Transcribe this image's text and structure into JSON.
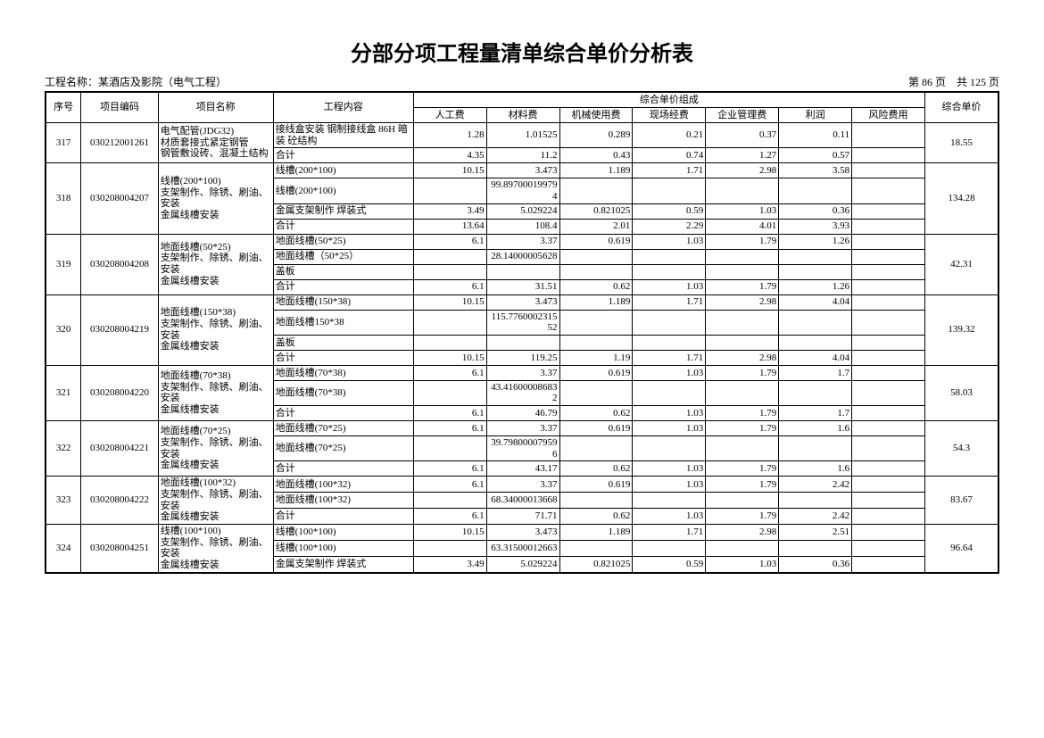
{
  "title": "分部分项工程量清单综合单价分析表",
  "project_label": "工程名称：",
  "project_name": "某酒店及影院（电气工程）",
  "page_info_left": "第 86 页",
  "page_info_right": "共 125 页",
  "headers": {
    "seq": "序号",
    "code": "项目编码",
    "name": "项目名称",
    "content": "工程内容",
    "group": "综合单价组成",
    "labor": "人工费",
    "material": "材料费",
    "machine": "机械使用费",
    "site": "现场经费",
    "mgmt": "企业管理费",
    "profit": "利润",
    "risk": "风险费用",
    "total": "综合单价"
  },
  "rows": [
    {
      "seq": "317",
      "code": "030212001261",
      "name": "电气配管(JDG32)\n材质套接式紧定钢管\n钢管敷设砖、混凝土结构",
      "total": "18.55",
      "lines": [
        {
          "content": "接线盒安装 钢制接线盒 86H 暗装 砼结构",
          "labor": "1.28",
          "material": "1.01525",
          "machine": "0.289",
          "site": "0.21",
          "mgmt": "0.37",
          "profit": "0.11",
          "risk": ""
        },
        {
          "content": "合计",
          "labor": "4.35",
          "material": "11.2",
          "machine": "0.43",
          "site": "0.74",
          "mgmt": "1.27",
          "profit": "0.57",
          "risk": ""
        }
      ]
    },
    {
      "seq": "318",
      "code": "030208004207",
      "name": "线槽(200*100)\n支架制作、除锈、刷油、安装\n金属线槽安装",
      "total": "134.28",
      "lines": [
        {
          "content": "线槽(200*100)",
          "labor": "10.15",
          "material": "3.473",
          "machine": "1.189",
          "site": "1.71",
          "mgmt": "2.98",
          "profit": "3.58",
          "risk": ""
        },
        {
          "content": "线槽(200*100)",
          "labor": "",
          "material": "99.897000199794",
          "machine": "",
          "site": "",
          "mgmt": "",
          "profit": "",
          "risk": ""
        },
        {
          "content": "金属支架制作 焊装式",
          "labor": "3.49",
          "material": "5.029224",
          "machine": "0.821025",
          "site": "0.59",
          "mgmt": "1.03",
          "profit": "0.36",
          "risk": ""
        },
        {
          "content": "合计",
          "labor": "13.64",
          "material": "108.4",
          "machine": "2.01",
          "site": "2.29",
          "mgmt": "4.01",
          "profit": "3.93",
          "risk": ""
        }
      ]
    },
    {
      "seq": "319",
      "code": "030208004208",
      "name": "地面线槽(50*25)\n支架制作、除锈、刷油、安装\n金属线槽安装",
      "total": "42.31",
      "lines": [
        {
          "content": "地面线槽(50*25)",
          "labor": "6.1",
          "material": "3.37",
          "machine": "0.619",
          "site": "1.03",
          "mgmt": "1.79",
          "profit": "1.26",
          "risk": ""
        },
        {
          "content": "地面线槽（50*25）",
          "labor": "",
          "material": "28.14000005628",
          "machine": "",
          "site": "",
          "mgmt": "",
          "profit": "",
          "risk": ""
        },
        {
          "content": "盖板",
          "labor": "",
          "material": "",
          "machine": "",
          "site": "",
          "mgmt": "",
          "profit": "",
          "risk": ""
        },
        {
          "content": "合计",
          "labor": "6.1",
          "material": "31.51",
          "machine": "0.62",
          "site": "1.03",
          "mgmt": "1.79",
          "profit": "1.26",
          "risk": ""
        }
      ]
    },
    {
      "seq": "320",
      "code": "030208004219",
      "name": "地面线槽(150*38)\n支架制作、除锈、刷油、安装\n金属线槽安装",
      "total": "139.32",
      "lines": [
        {
          "content": "地面线槽(150*38)",
          "labor": "10.15",
          "material": "3.473",
          "machine": "1.189",
          "site": "1.71",
          "mgmt": "2.98",
          "profit": "4.04",
          "risk": ""
        },
        {
          "content": "地面线槽150*38",
          "labor": "",
          "material": "115.776000231552",
          "machine": "",
          "site": "",
          "mgmt": "",
          "profit": "",
          "risk": ""
        },
        {
          "content": "盖板",
          "labor": "",
          "material": "",
          "machine": "",
          "site": "",
          "mgmt": "",
          "profit": "",
          "risk": ""
        },
        {
          "content": "合计",
          "labor": "10.15",
          "material": "119.25",
          "machine": "1.19",
          "site": "1.71",
          "mgmt": "2.98",
          "profit": "4.04",
          "risk": ""
        }
      ]
    },
    {
      "seq": "321",
      "code": "030208004220",
      "name": "地面线槽(70*38)\n支架制作、除锈、刷油、安装\n金属线槽安装",
      "total": "58.03",
      "lines": [
        {
          "content": "地面线槽(70*38)",
          "labor": "6.1",
          "material": "3.37",
          "machine": "0.619",
          "site": "1.03",
          "mgmt": "1.79",
          "profit": "1.7",
          "risk": ""
        },
        {
          "content": "地面线槽(70*38)",
          "labor": "",
          "material": "43.416000086832",
          "machine": "",
          "site": "",
          "mgmt": "",
          "profit": "",
          "risk": ""
        },
        {
          "content": "合计",
          "labor": "6.1",
          "material": "46.79",
          "machine": "0.62",
          "site": "1.03",
          "mgmt": "1.79",
          "profit": "1.7",
          "risk": ""
        }
      ]
    },
    {
      "seq": "322",
      "code": "030208004221",
      "name": "地面线槽(70*25)\n支架制作、除锈、刷油、安装\n金属线槽安装",
      "total": "54.3",
      "lines": [
        {
          "content": "地面线槽(70*25)",
          "labor": "6.1",
          "material": "3.37",
          "machine": "0.619",
          "site": "1.03",
          "mgmt": "1.79",
          "profit": "1.6",
          "risk": ""
        },
        {
          "content": "地面线槽(70*25)",
          "labor": "",
          "material": "39.798000079596",
          "machine": "",
          "site": "",
          "mgmt": "",
          "profit": "",
          "risk": ""
        },
        {
          "content": "合计",
          "labor": "6.1",
          "material": "43.17",
          "machine": "0.62",
          "site": "1.03",
          "mgmt": "1.79",
          "profit": "1.6",
          "risk": ""
        }
      ]
    },
    {
      "seq": "323",
      "code": "030208004222",
      "name": "地面线槽(100*32)\n支架制作、除锈、刷油、安装\n金属线槽安装",
      "total": "83.67",
      "lines": [
        {
          "content": "地面线槽(100*32)",
          "labor": "6.1",
          "material": "3.37",
          "machine": "0.619",
          "site": "1.03",
          "mgmt": "1.79",
          "profit": "2.42",
          "risk": ""
        },
        {
          "content": "地面线槽(100*32)",
          "labor": "",
          "material": "68.34000013668",
          "machine": "",
          "site": "",
          "mgmt": "",
          "profit": "",
          "risk": ""
        },
        {
          "content": "合计",
          "labor": "6.1",
          "material": "71.71",
          "machine": "0.62",
          "site": "1.03",
          "mgmt": "1.79",
          "profit": "2.42",
          "risk": ""
        }
      ]
    },
    {
      "seq": "324",
      "code": "030208004251",
      "name": "线槽(100*100)\n支架制作、除锈、刷油、安装\n金属线槽安装",
      "total": "96.64",
      "lines": [
        {
          "content": "线槽(100*100)",
          "labor": "10.15",
          "material": "3.473",
          "machine": "1.189",
          "site": "1.71",
          "mgmt": "2.98",
          "profit": "2.51",
          "risk": ""
        },
        {
          "content": "线槽(100*100)",
          "labor": "",
          "material": "63.31500012663",
          "machine": "",
          "site": "",
          "mgmt": "",
          "profit": "",
          "risk": ""
        },
        {
          "content": "金属支架制作 焊装式",
          "labor": "3.49",
          "material": "5.029224",
          "machine": "0.821025",
          "site": "0.59",
          "mgmt": "1.03",
          "profit": "0.36",
          "risk": ""
        }
      ]
    }
  ]
}
